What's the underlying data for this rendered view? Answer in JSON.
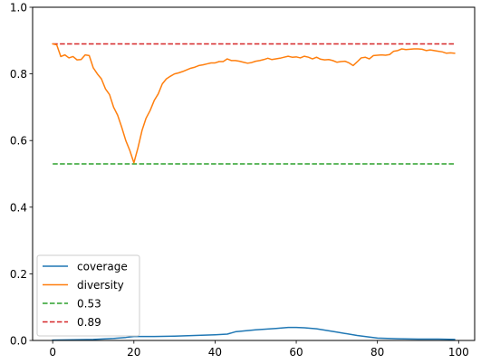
{
  "chart_data": {
    "type": "line",
    "title": "",
    "xlabel": "",
    "ylabel": "",
    "xlim": [
      -4.95,
      103.95
    ],
    "ylim": [
      0,
      1.0
    ],
    "x_ticks": [
      0,
      20,
      40,
      60,
      80,
      100
    ],
    "y_ticks": [
      0.0,
      0.2,
      0.4,
      0.6,
      0.8,
      1.0
    ],
    "x_tick_labels": [
      "0",
      "20",
      "40",
      "60",
      "80",
      "100"
    ],
    "y_tick_labels": [
      "0.0",
      "0.2",
      "0.4",
      "0.6",
      "0.8",
      "1.0"
    ],
    "grid": false,
    "legend_position": "lower-left",
    "series": [
      {
        "name": "coverage",
        "color": "#1f77b4",
        "style": "solid",
        "x": [
          0,
          5,
          10,
          15,
          18,
          20,
          25,
          30,
          35,
          40,
          43,
          45,
          50,
          55,
          58,
          60,
          62,
          65,
          70,
          75,
          80,
          85,
          90,
          95,
          99
        ],
        "y": [
          0.001,
          0.002,
          0.003,
          0.006,
          0.009,
          0.012,
          0.012,
          0.013,
          0.015,
          0.017,
          0.019,
          0.026,
          0.032,
          0.036,
          0.039,
          0.039,
          0.038,
          0.035,
          0.025,
          0.015,
          0.007,
          0.005,
          0.004,
          0.004,
          0.003
        ]
      },
      {
        "name": "diversity",
        "color": "#ff7f0e",
        "style": "solid",
        "x": [
          0,
          1,
          2,
          3,
          4,
          5,
          6,
          7,
          8,
          9,
          10,
          11,
          12,
          13,
          14,
          15,
          16,
          17,
          18,
          19,
          20,
          21,
          22,
          23,
          24,
          25,
          26,
          27,
          28,
          29,
          30,
          31,
          32,
          33,
          34,
          35,
          36,
          37,
          38,
          39,
          40,
          41,
          42,
          43,
          44,
          45,
          46,
          47,
          48,
          49,
          50,
          51,
          52,
          53,
          54,
          55,
          56,
          57,
          58,
          59,
          60,
          61,
          62,
          63,
          64,
          65,
          66,
          67,
          68,
          69,
          70,
          71,
          72,
          73,
          74,
          75,
          76,
          77,
          78,
          79,
          80,
          81,
          82,
          83,
          84,
          85,
          86,
          87,
          88,
          89,
          90,
          91,
          92,
          93,
          94,
          95,
          96,
          97,
          98,
          99
        ],
        "y": [
          0.89,
          0.887,
          0.852,
          0.857,
          0.848,
          0.852,
          0.842,
          0.843,
          0.857,
          0.855,
          0.818,
          0.8,
          0.785,
          0.755,
          0.738,
          0.7,
          0.676,
          0.64,
          0.6,
          0.57,
          0.533,
          0.578,
          0.63,
          0.667,
          0.69,
          0.72,
          0.74,
          0.77,
          0.785,
          0.793,
          0.8,
          0.803,
          0.807,
          0.812,
          0.817,
          0.82,
          0.825,
          0.827,
          0.83,
          0.833,
          0.833,
          0.837,
          0.837,
          0.845,
          0.84,
          0.84,
          0.838,
          0.835,
          0.832,
          0.834,
          0.838,
          0.84,
          0.843,
          0.847,
          0.843,
          0.845,
          0.847,
          0.85,
          0.853,
          0.85,
          0.851,
          0.848,
          0.853,
          0.85,
          0.845,
          0.85,
          0.844,
          0.842,
          0.843,
          0.84,
          0.835,
          0.837,
          0.838,
          0.833,
          0.825,
          0.836,
          0.848,
          0.85,
          0.845,
          0.855,
          0.856,
          0.857,
          0.856,
          0.858,
          0.868,
          0.87,
          0.875,
          0.873,
          0.874,
          0.875,
          0.875,
          0.874,
          0.87,
          0.872,
          0.87,
          0.868,
          0.866,
          0.862,
          0.863,
          0.862
        ]
      },
      {
        "name": "0.53",
        "color": "#2ca02c",
        "style": "dashed",
        "x": [
          0,
          99
        ],
        "y": [
          0.53,
          0.53
        ]
      },
      {
        "name": "0.89",
        "color": "#d62728",
        "style": "dashed",
        "x": [
          0,
          99
        ],
        "y": [
          0.89,
          0.89
        ]
      }
    ]
  }
}
